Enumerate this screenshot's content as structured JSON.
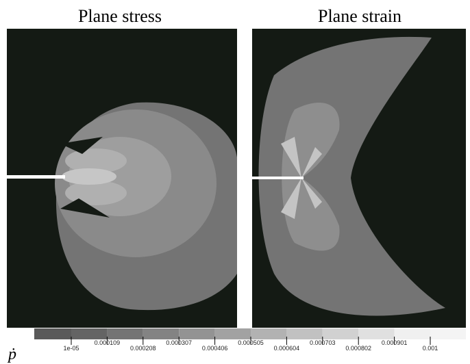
{
  "panels": [
    {
      "title": "Plane stress"
    },
    {
      "title": "Plane strain"
    }
  ],
  "colorbar": {
    "label": "ṗ",
    "ticks": [
      {
        "value": 1e-05,
        "label": "1e-05"
      },
      0.000109,
      0.000208,
      0.000307,
      0.000406,
      0.000505,
      0.000604,
      0.000703,
      0.000802,
      0.000901,
      0.001
    ]
  }
}
